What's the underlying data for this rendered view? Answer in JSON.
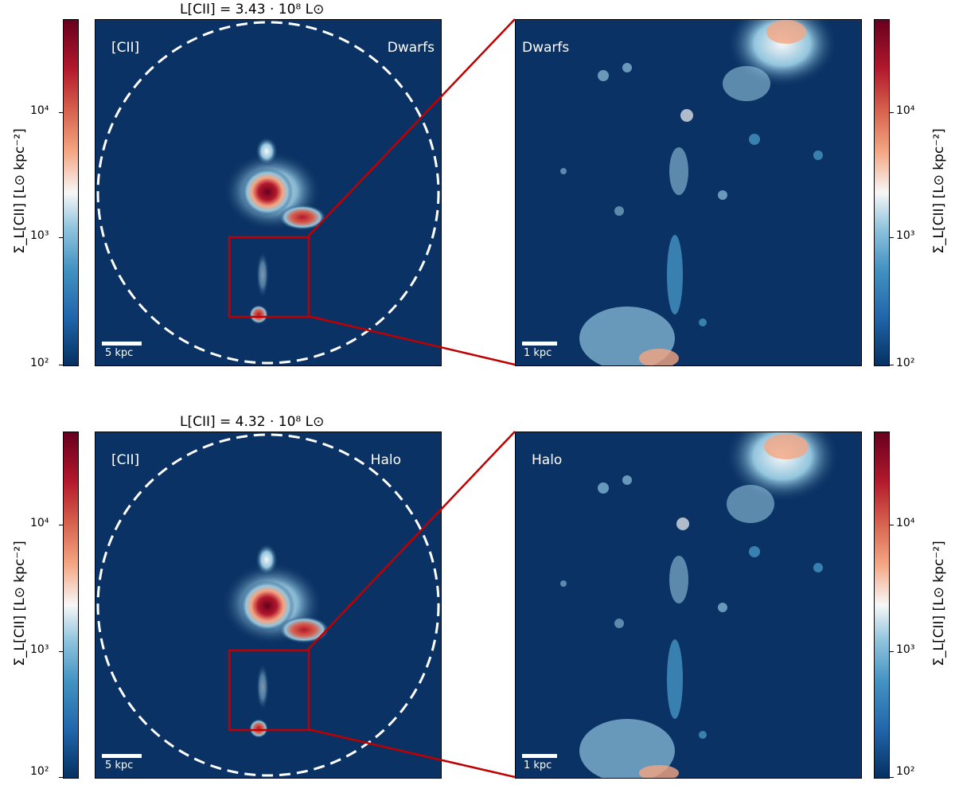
{
  "rows": [
    {
      "title": "L[CII] = 3.43 · 10⁸ L⊙",
      "left_label": "[CII]",
      "left_model": "Dwarfs",
      "right_model": "Dwarfs",
      "left_scale": "5 kpc",
      "right_scale": "1 kpc"
    },
    {
      "title": "L[CII] = 4.32 · 10⁸ L⊙",
      "left_label": "[CII]",
      "left_model": "Halo",
      "right_model": "Halo",
      "left_scale": "5 kpc",
      "right_scale": "1 kpc"
    }
  ],
  "colorbar": {
    "label": "Σ_L[CII] [L⊙ kpc⁻²]",
    "ticks": [
      "10⁴",
      "10³",
      "10²"
    ],
    "colormap": [
      "#053061",
      "#2166ac",
      "#4393c3",
      "#92c5de",
      "#f7f7f7",
      "#f4a582",
      "#d6604d",
      "#b2182b",
      "#67001f"
    ]
  },
  "colors": {
    "background": "#0a3264",
    "zoom_box": "#c00000",
    "aperture": "#ffffff"
  }
}
